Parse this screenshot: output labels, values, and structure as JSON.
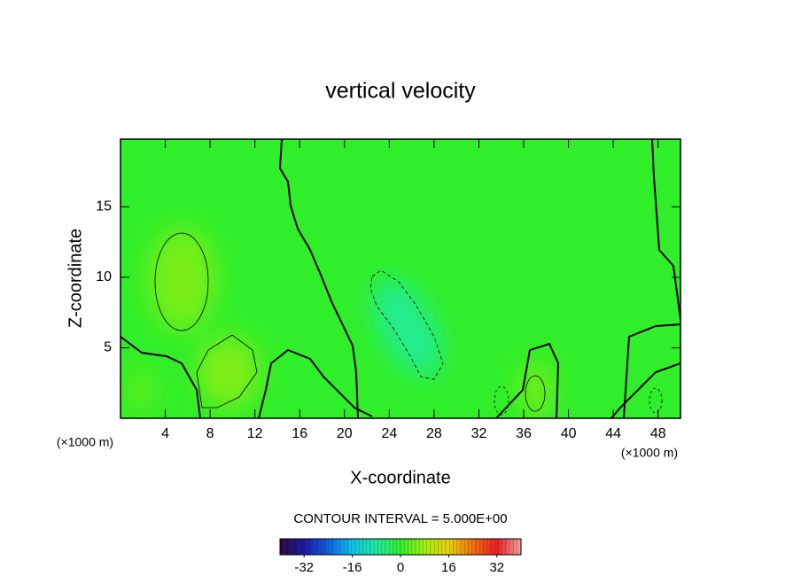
{
  "chart_data": {
    "type": "contour",
    "title": "vertical velocity",
    "xlabel": "X-coordinate",
    "ylabel": "Z-coordinate",
    "x_unit": "(×1000 m)",
    "x_unit_right": "(×1000 m)",
    "xlim": [
      0,
      50
    ],
    "xticks": [
      4,
      8,
      12,
      16,
      20,
      24,
      28,
      32,
      36,
      40,
      44,
      48
    ],
    "ylim": [
      0,
      19.8
    ],
    "yticks": [
      5,
      10,
      15
    ],
    "contour_note": "CONTOUR INTERVAL = 5.000E+00",
    "field_color": "#30ee2a",
    "colorbar": {
      "lim": [
        -40,
        40
      ],
      "ticks": [
        -32,
        -16,
        0,
        16,
        32
      ],
      "colormap": [
        "#2a0a40",
        "#1a1aa0",
        "#1060e0",
        "#10c0e8",
        "#20e8a0",
        "#30ee2a",
        "#a0ee10",
        "#e8d010",
        "#f07010",
        "#e82020",
        "#f0a0a0"
      ]
    }
  }
}
